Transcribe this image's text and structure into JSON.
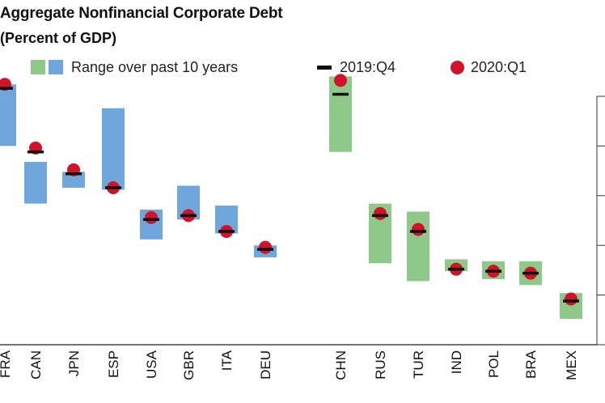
{
  "header": {
    "title": "Aggregate Nonfinancial Corporate Debt",
    "subtitle": "(Percent of GDP)"
  },
  "legend": {
    "range_label": "Range over past 10 years",
    "q4_label": "2019:Q4",
    "q1_label": "2020:Q1"
  },
  "colors": {
    "advanced_range": "#6fa7dc",
    "emerging_range": "#8fc98a",
    "q4_marker": "#111111",
    "q1_marker": "#d0122b"
  },
  "chart_data": {
    "type": "range",
    "title": "Aggregate Nonfinancial Corporate Debt",
    "subtitle": "(Percent of GDP)",
    "ylim": [
      0,
      125
    ],
    "yticks": [
      0,
      25,
      50,
      75,
      100,
      125
    ],
    "grid": false,
    "legend_position": "top",
    "categories": [
      "FRA",
      "CAN",
      "JPN",
      "ESP",
      "USA",
      "GBR",
      "ITA",
      "DEU",
      "CHN",
      "RUS",
      "TUR",
      "IND",
      "POL",
      "BRA",
      "MEX"
    ],
    "groups": [
      "advanced",
      "advanced",
      "advanced",
      "advanced",
      "advanced",
      "advanced",
      "advanced",
      "advanced",
      "emerging",
      "emerging",
      "emerging",
      "emerging",
      "emerging",
      "emerging",
      "emerging"
    ],
    "range_min": [
      100,
      71,
      79,
      78,
      53,
      63,
      56,
      44,
      97,
      41,
      32,
      37,
      33,
      30,
      13
    ],
    "range_max": [
      131,
      92,
      87,
      119,
      68,
      80,
      70,
      50,
      135,
      71,
      67,
      43,
      42,
      42,
      26
    ],
    "q4_2019": [
      129,
      97,
      86,
      79,
      63,
      65,
      57,
      48,
      126,
      65,
      57,
      38,
      37,
      36,
      22
    ],
    "q1_2020": [
      131,
      99,
      88,
      79,
      64,
      65,
      57,
      49,
      133,
      66,
      58,
      38,
      37,
      36,
      23
    ]
  }
}
